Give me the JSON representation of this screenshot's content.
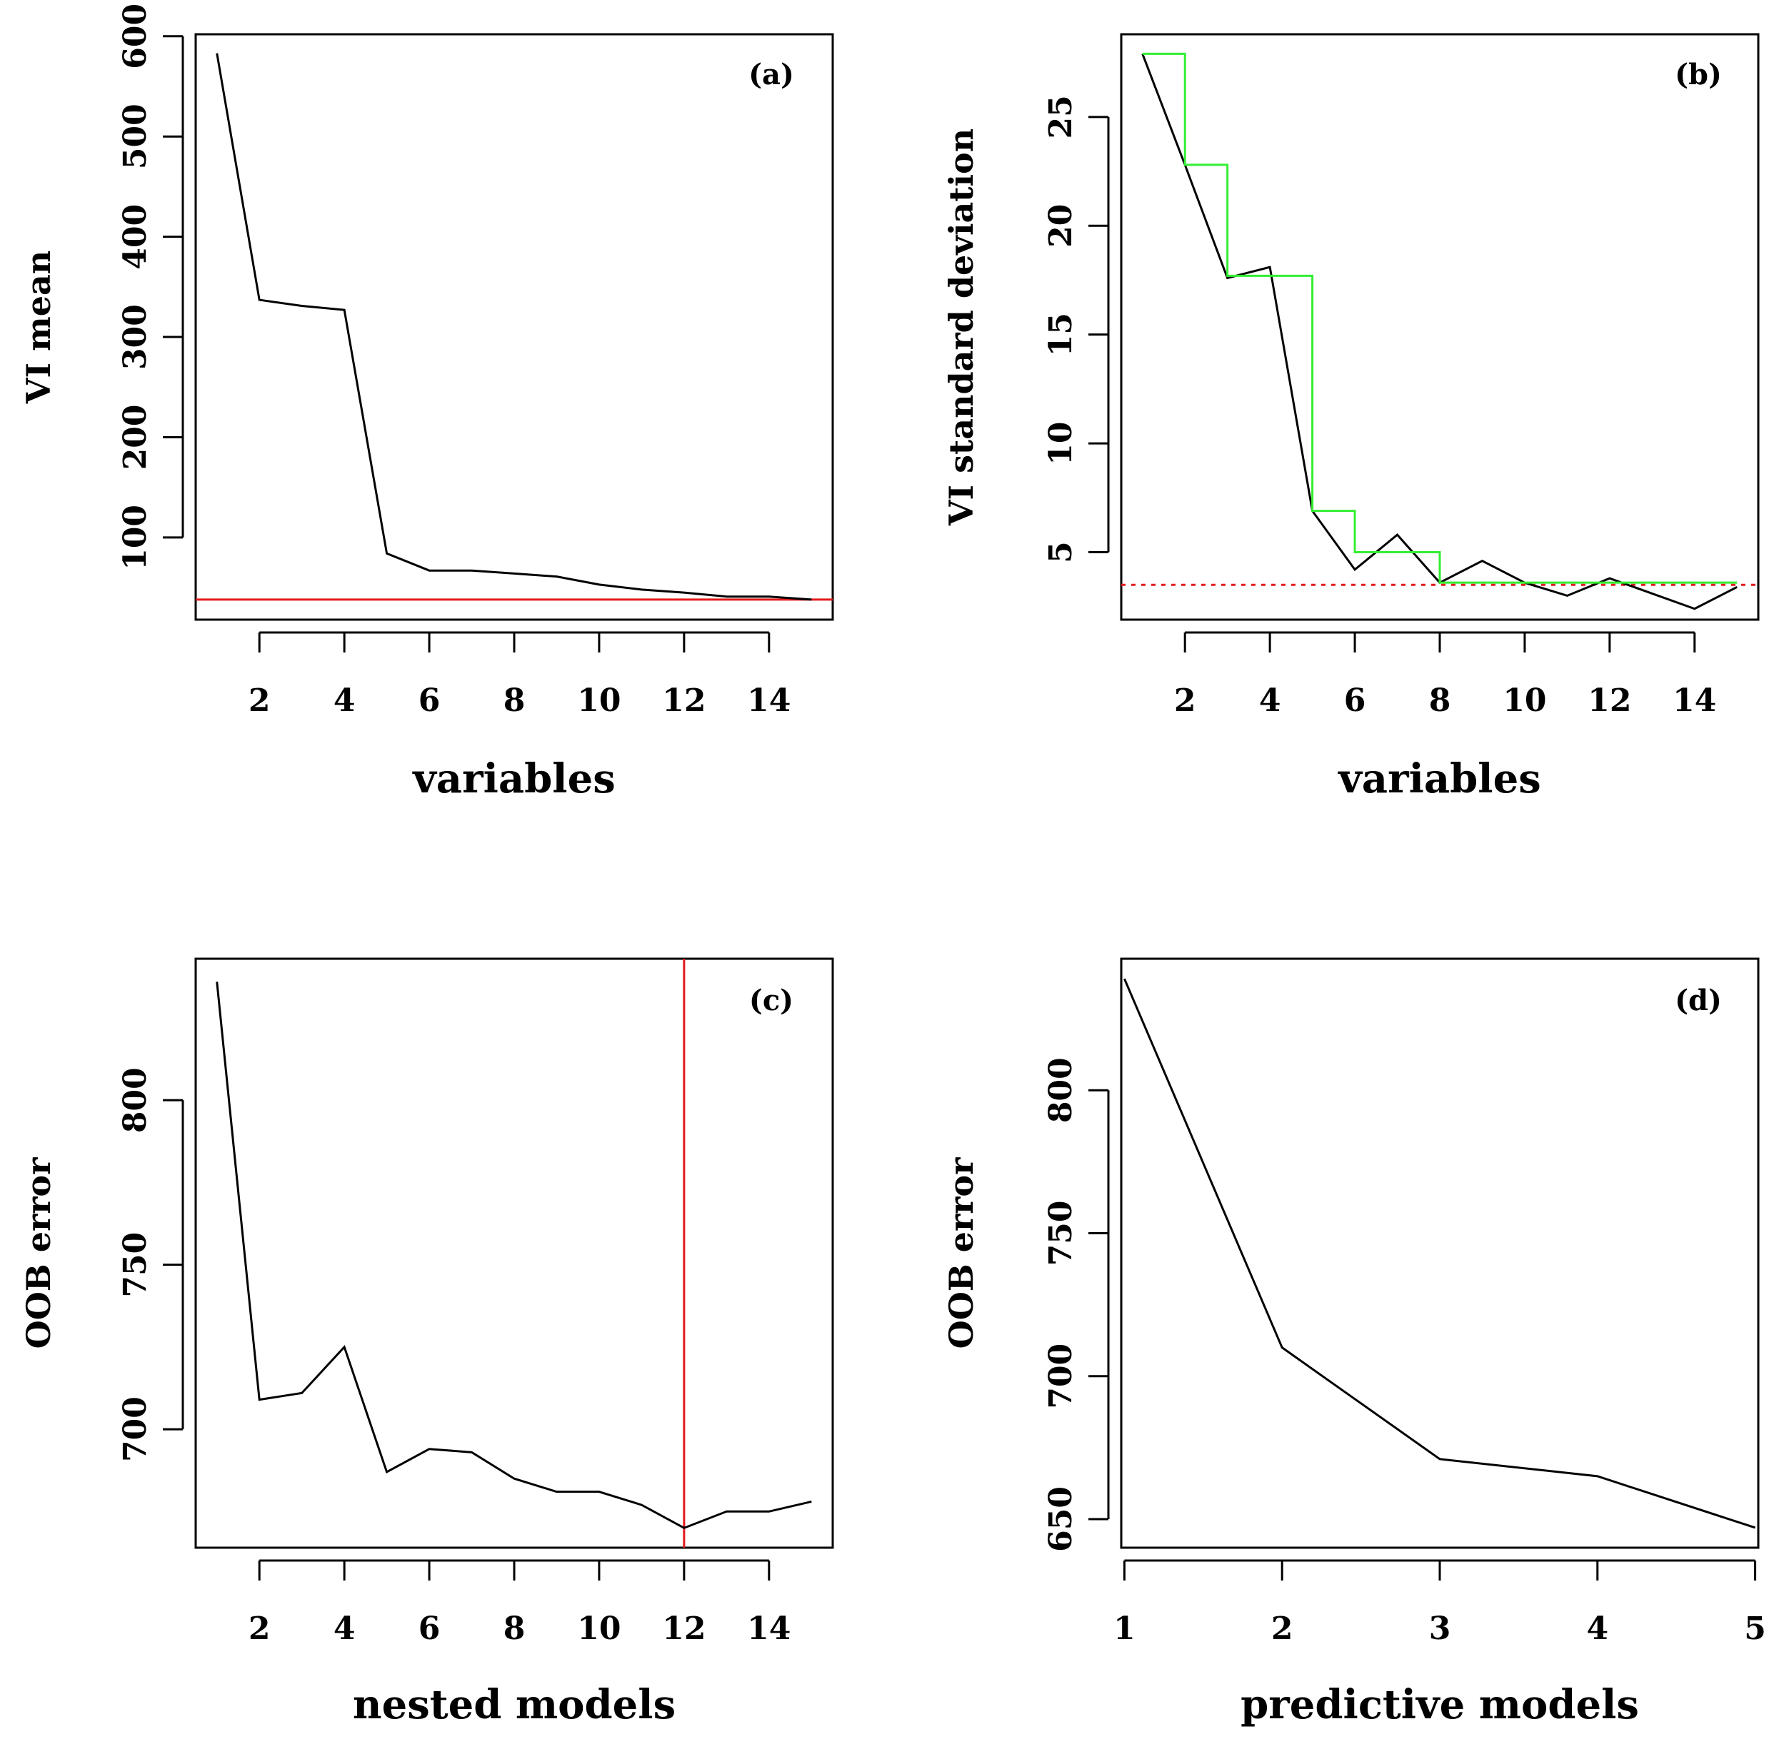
{
  "chart_data": [
    {
      "id": "a",
      "type": "line",
      "panel_label": "(a)",
      "xlabel": "variables",
      "ylabel": "VI mean",
      "xlim": [
        0.5,
        15.5
      ],
      "ylim": [
        18,
        602
      ],
      "xticks": [
        2,
        4,
        6,
        8,
        10,
        12,
        14
      ],
      "yticks": [
        100,
        200,
        300,
        400,
        500,
        600
      ],
      "series": [
        {
          "color": "#000000",
          "x": [
            1,
            2,
            3,
            4,
            5,
            6,
            7,
            8,
            9,
            10,
            11,
            12,
            13,
            14,
            15
          ],
          "y": [
            583,
            337,
            331,
            327,
            84,
            67,
            67,
            64,
            61,
            53,
            48,
            45,
            41,
            41,
            38
          ]
        }
      ],
      "hlines": [
        {
          "y": 38,
          "color": "#e31a1c",
          "dash": false
        }
      ],
      "vlines": []
    },
    {
      "id": "b",
      "type": "line",
      "panel_label": "(b)",
      "xlabel": "variables",
      "ylabel": "VI standard deviation",
      "xlim": [
        0.5,
        15.5
      ],
      "ylim": [
        1.9,
        28.8
      ],
      "xticks": [
        2,
        4,
        6,
        8,
        10,
        12,
        14
      ],
      "yticks": [
        5,
        10,
        15,
        20,
        25
      ],
      "series": [
        {
          "color": "#000000",
          "x": [
            1,
            2,
            3,
            4,
            5,
            6,
            7,
            8,
            9,
            10,
            11,
            12,
            13,
            14,
            15
          ],
          "y": [
            27.9,
            22.8,
            17.6,
            18.1,
            6.9,
            4.2,
            5.8,
            3.6,
            4.6,
            3.6,
            3.0,
            3.8,
            3.1,
            2.4,
            3.4
          ]
        },
        {
          "color": "#33ee33",
          "step": true,
          "x": [
            1,
            2,
            3,
            4,
            5,
            6,
            7,
            8,
            9,
            10,
            11,
            12,
            13,
            14,
            15
          ],
          "y": [
            27.9,
            22.8,
            17.7,
            17.7,
            6.9,
            5.0,
            5.0,
            3.6,
            3.6,
            3.6,
            3.6,
            3.6,
            3.6,
            3.6,
            3.6
          ]
        }
      ],
      "hlines": [
        {
          "y": 3.5,
          "color": "#e31a1c",
          "dash": true
        }
      ],
      "vlines": []
    },
    {
      "id": "c",
      "type": "line",
      "panel_label": "(c)",
      "xlabel": "nested models",
      "ylabel": "OOB error",
      "xlim": [
        0.5,
        15.5
      ],
      "ylim": [
        664,
        843
      ],
      "xticks": [
        2,
        4,
        6,
        8,
        10,
        12,
        14
      ],
      "yticks": [
        700,
        750,
        800
      ],
      "series": [
        {
          "color": "#000000",
          "x": [
            1,
            2,
            3,
            4,
            5,
            6,
            7,
            8,
            9,
            10,
            11,
            12,
            13,
            14,
            15
          ],
          "y": [
            836,
            709,
            711,
            725,
            687,
            694,
            693,
            685,
            681,
            681,
            677,
            670,
            675,
            675,
            678
          ]
        }
      ],
      "hlines": [],
      "vlines": [
        {
          "x": 12,
          "color": "#e31a1c"
        }
      ]
    },
    {
      "id": "d",
      "type": "line",
      "panel_label": "(d)",
      "xlabel": "predictive models",
      "ylabel": "OOB error",
      "xlim": [
        0.98,
        5.02
      ],
      "ylim": [
        640,
        846
      ],
      "xticks": [
        1,
        2,
        3,
        4,
        5
      ],
      "yticks": [
        650,
        700,
        750,
        800
      ],
      "series": [
        {
          "color": "#000000",
          "x": [
            1,
            2,
            3,
            4,
            5
          ],
          "y": [
            839,
            710,
            671,
            665,
            647
          ]
        }
      ],
      "hlines": [],
      "vlines": []
    }
  ]
}
